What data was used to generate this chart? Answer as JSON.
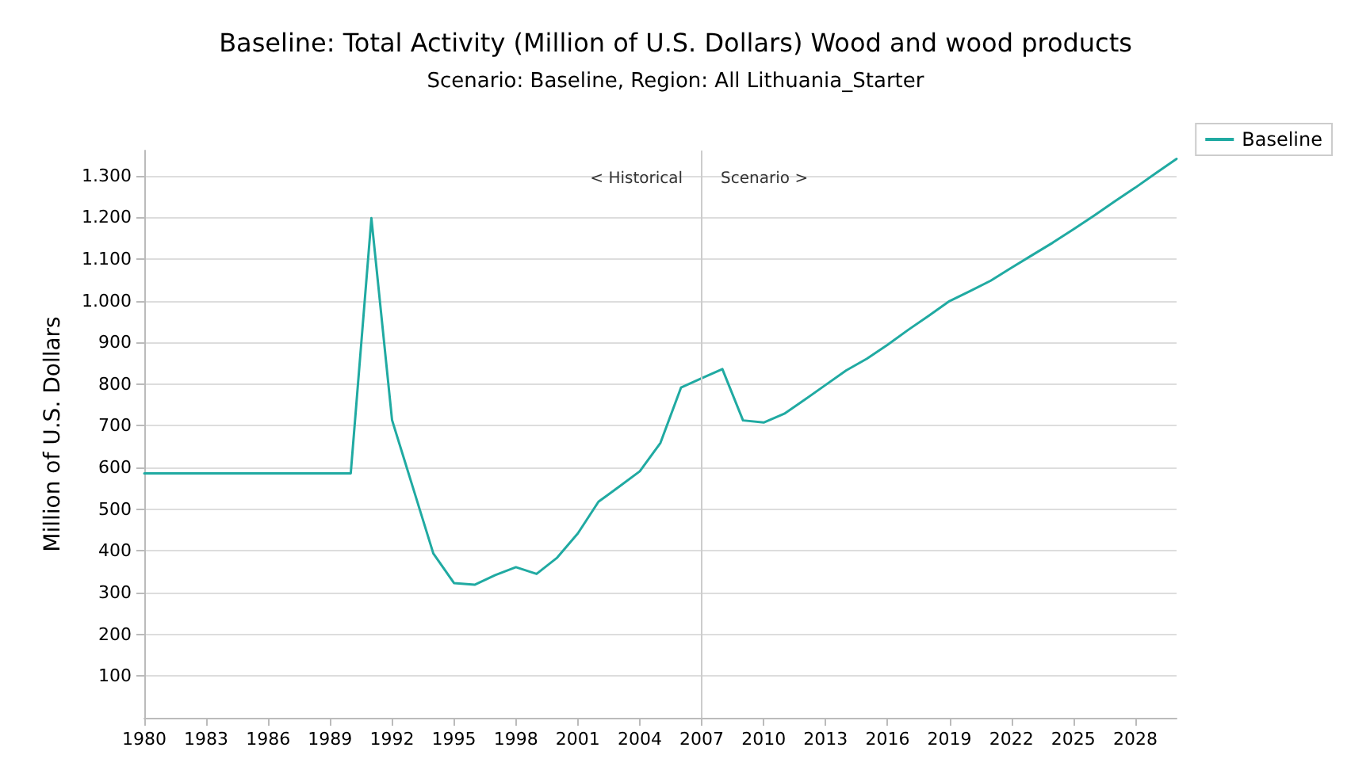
{
  "chart_data": {
    "type": "line",
    "title": "Baseline: Total Activity (Million of U.S. Dollars) Wood and wood products",
    "subtitle": "Scenario: Baseline, Region: All Lithuania_Starter",
    "ylabel": "Million of U.S. Dollars",
    "x": [
      1980,
      1981,
      1982,
      1983,
      1984,
      1985,
      1986,
      1987,
      1988,
      1989,
      1990,
      1991,
      1992,
      1993,
      1994,
      1995,
      1996,
      1997,
      1998,
      1999,
      2000,
      2001,
      2002,
      2003,
      2004,
      2005,
      2006,
      2007,
      2008,
      2009,
      2010,
      2011,
      2012,
      2013,
      2014,
      2015,
      2016,
      2017,
      2018,
      2019,
      2020,
      2021,
      2022,
      2023,
      2024,
      2025,
      2026,
      2027,
      2028,
      2029,
      2030
    ],
    "series": [
      {
        "name": "Baseline",
        "color": "#20aaa2",
        "values": [
          586,
          586,
          586,
          586,
          586,
          586,
          586,
          586,
          586,
          586,
          586,
          1198,
          714,
          554,
          394,
          323,
          319,
          342,
          361,
          345,
          384,
          442,
          518,
          554,
          591,
          659,
          792,
          814,
          836,
          713,
          708,
          729,
          763,
          798,
          833,
          861,
          894,
          930,
          964,
          999,
          1023,
          1048,
          1079,
          1109,
          1139,
          1171,
          1204,
          1238,
          1271,
          1306,
          1340
        ]
      }
    ],
    "xlim": [
      1980,
      2030
    ],
    "xticks": [
      1980,
      1983,
      1986,
      1989,
      1992,
      1995,
      1998,
      2001,
      2004,
      2007,
      2010,
      2013,
      2016,
      2019,
      2022,
      2025,
      2028
    ],
    "ylim": [
      0,
      1360
    ],
    "yticks": [
      100,
      200,
      300,
      400,
      500,
      600,
      700,
      800,
      900,
      {
        "value": 1000,
        "label": "1.000"
      },
      {
        "value": 1100,
        "label": "1.100"
      },
      {
        "value": 1200,
        "label": "1.200"
      },
      {
        "value": 1300,
        "label": "1.300"
      }
    ],
    "ref_lines": [
      {
        "axis": "x",
        "value": 2007,
        "color": "#cccccc"
      }
    ],
    "annotations": [
      "< Historical",
      "Scenario >"
    ],
    "grid": "y",
    "legend": "top right",
    "marker": "none",
    "line_style": "solid"
  }
}
